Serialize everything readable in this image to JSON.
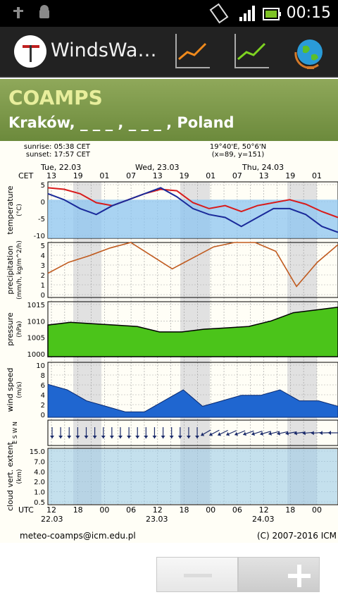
{
  "status": {
    "time": "00:15"
  },
  "app": {
    "title": "WindsWa…"
  },
  "header": {
    "model": "COAMPS",
    "location": "Kraków, _ _ _ , _ _ _ , Poland"
  },
  "meteogram": {
    "sun": {
      "sunrise": "sunrise: 05:38 CET",
      "sunset": "sunset: 17:57 CET"
    },
    "coords": {
      "line1": "19°40'E, 50°6'N",
      "line2": "(x=89, y=151)"
    },
    "days_top": [
      "Tue, 22.03",
      "Wed, 23.03",
      "Thu, 24.03"
    ],
    "tz_top": "CET",
    "hours_top": [
      "13",
      "19",
      "01",
      "07",
      "13",
      "19",
      "01",
      "07",
      "13",
      "19",
      "01"
    ],
    "tz_bottom": "UTC",
    "hours_bottom": [
      "12",
      "18",
      "00",
      "06",
      "12",
      "18",
      "00",
      "06",
      "12",
      "18",
      "00"
    ],
    "dates_bottom": [
      "22.03",
      "23.03",
      "24.03"
    ],
    "footer_left": "meteo-coamps@icm.edu.pl",
    "footer_right": "(C) 2007-2016 ICM",
    "panels": [
      {
        "label1": "temperature",
        "label2": "(°C)",
        "ticks": [
          "5",
          "0",
          "-5",
          "-10"
        ]
      },
      {
        "label1": "precipitation",
        "label2": "(mm/h, kg/m^2/h)",
        "ticks": [
          "5",
          "4",
          "3",
          "2",
          "1",
          "0"
        ]
      },
      {
        "label1": "pressure",
        "label2": "(hPa)",
        "ticks": [
          "1015",
          "1010",
          "1005",
          "1000"
        ]
      },
      {
        "label1": "wind speed",
        "label2": "(m/s)",
        "ticks": [
          "10",
          "8",
          "6",
          "4",
          "2",
          "0"
        ]
      },
      {
        "label1": "cloud vert. extent",
        "label2": "(km)",
        "ticks": [
          "15.0",
          "7.0",
          "4.0",
          "2.0",
          "1.0",
          "0.5"
        ]
      }
    ],
    "wind_dir_label": "E S W N"
  },
  "chart_data": [
    {
      "type": "line",
      "series": [
        {
          "values": [
            4,
            3.5,
            2,
            -1,
            -2,
            0,
            2,
            3.5,
            3,
            -1,
            -3,
            -2,
            -4,
            -2,
            -1,
            0,
            -1.5,
            -4,
            -6
          ]
        },
        {
          "values": [
            2,
            0,
            -3,
            -5,
            -2,
            0,
            2,
            4,
            1,
            -3,
            -5,
            -6,
            -9,
            -6,
            -3,
            -3,
            -5,
            -9,
            -11
          ]
        }
      ],
      "ylim": [
        -13,
        6
      ]
    },
    {
      "type": "line",
      "series": [
        {
          "values": [
            2.2,
            3.2,
            3.8,
            4.5,
            5.0,
            3.8,
            2.6,
            3.6,
            4.6,
            5.0,
            5.0,
            4.2,
            1.0,
            3.2,
            4.8
          ]
        }
      ],
      "ylim": [
        0,
        5
      ]
    },
    {
      "type": "area",
      "series": [
        {
          "values": [
            1007.5,
            1008.5,
            1008,
            1007.5,
            1007,
            1005,
            1005,
            1006,
            1006.5,
            1007,
            1009,
            1012,
            1013,
            1014
          ]
        }
      ],
      "ylim": [
        996,
        1016
      ]
    },
    {
      "type": "area",
      "series": [
        {
          "values": [
            6,
            5,
            3,
            2,
            1,
            1,
            3,
            5,
            2,
            3,
            4,
            4,
            5,
            3,
            3,
            2
          ]
        }
      ],
      "ylim": [
        0,
        10
      ]
    }
  ]
}
